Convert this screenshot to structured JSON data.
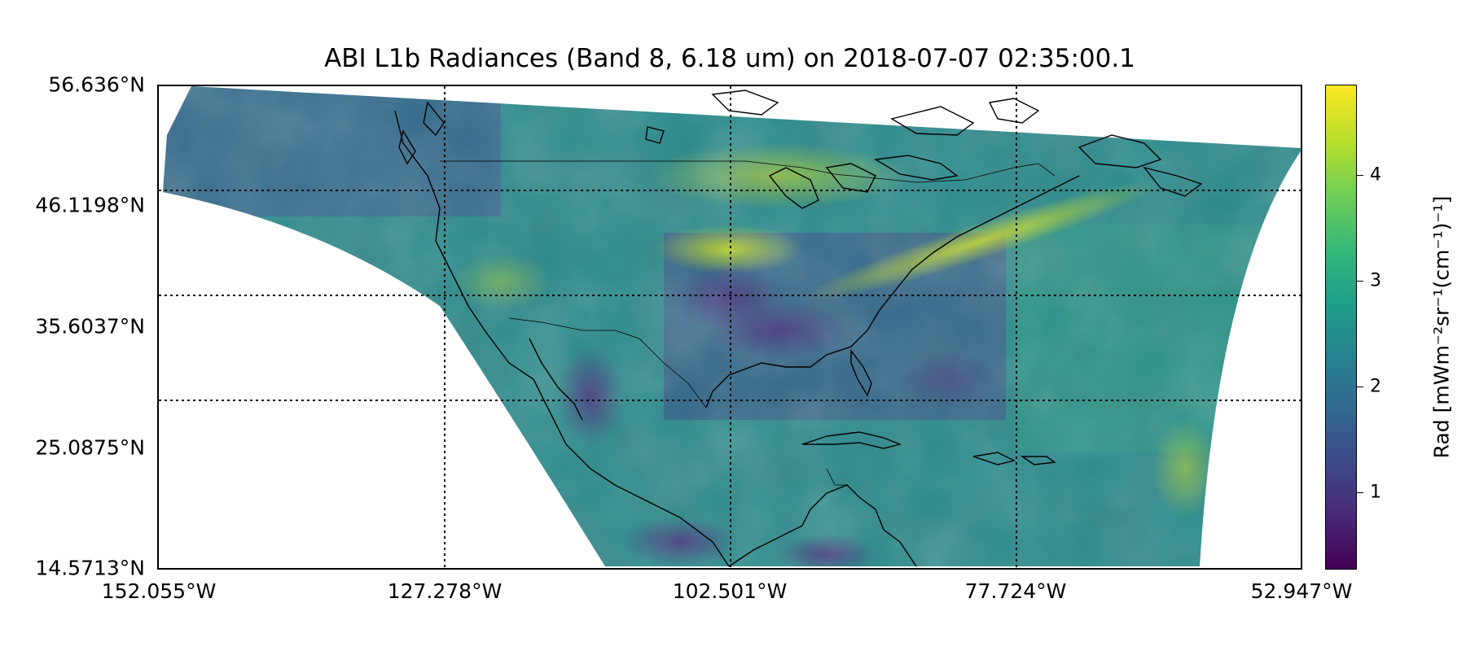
{
  "title": "ABI L1b Radiances (Band 8, 6.18 um) on 2018-07-07 02:35:00.1",
  "map": {
    "projection": "geostationary scan, plate carree display",
    "colormap": "viridis",
    "lat_range": [
      14.5713,
      56.636
    ],
    "lon_range": [
      -152.055,
      -52.947
    ],
    "lat_labels": [
      "56.636°N",
      "46.1198°N",
      "35.6037°N",
      "25.0875°N",
      "14.5713°N"
    ],
    "lon_labels": [
      "152.055°W",
      "127.278°W",
      "102.501°W",
      "77.724°W",
      "52.947°W"
    ],
    "gridlines": "dotted",
    "coastlines": true,
    "borders": true
  },
  "colorbar": {
    "label": "Rad [mWm⁻²sr⁻¹(cm⁻¹)⁻¹]",
    "range": [
      0.3,
      4.85
    ],
    "ticks": [
      "1",
      "2",
      "3",
      "4"
    ],
    "colors": [
      "#440154",
      "#3e4989",
      "#26828e",
      "#35b779",
      "#fde725"
    ]
  }
}
